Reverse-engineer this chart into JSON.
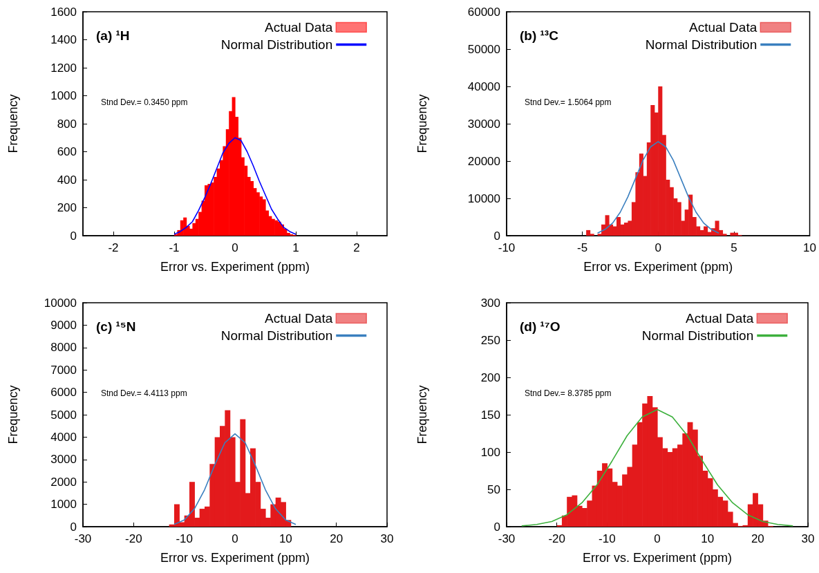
{
  "chart_data": [
    {
      "type": "histogram",
      "title": "(a) ¹H",
      "xlabel": "Error vs. Experiment (ppm)",
      "ylabel": "Frequency",
      "annotations": [
        "Stnd Dev.= 0.3450 ppm"
      ],
      "legend": "top right",
      "xlim": [
        -2.5,
        2.5
      ],
      "xticks": [
        -2,
        -1,
        0,
        1,
        2
      ],
      "ylim": [
        0,
        1600
      ],
      "yticks": [
        0,
        200,
        400,
        600,
        800,
        1000,
        1200,
        1400,
        1600
      ],
      "bins": [
        -1.0,
        -0.95,
        -0.9,
        -0.85,
        -0.8,
        -0.75,
        -0.7,
        -0.65,
        -0.6,
        -0.55,
        -0.5,
        -0.45,
        -0.4,
        -0.35,
        -0.3,
        -0.25,
        -0.2,
        -0.15,
        -0.1,
        -0.05,
        0,
        0.05,
        0.1,
        0.15,
        0.2,
        0.25,
        0.3,
        0.35,
        0.4,
        0.45,
        0.5,
        0.55,
        0.6,
        0.65,
        0.7,
        0.75,
        0.8,
        0.85,
        0.9,
        0.95,
        1.0
      ],
      "series": [
        {
          "name": "Actual Data",
          "type": "histogram",
          "color": "#ff0000",
          "values": [
            10,
            40,
            110,
            130,
            70,
            50,
            90,
            120,
            170,
            250,
            360,
            370,
            380,
            420,
            480,
            540,
            640,
            760,
            890,
            990,
            850,
            700,
            560,
            500,
            420,
            390,
            340,
            310,
            280,
            260,
            180,
            140,
            120,
            110,
            100,
            80,
            50,
            20,
            10,
            5
          ]
        },
        {
          "name": "Normal Distribution",
          "type": "line",
          "color": "#0000ff",
          "x": [
            -1.0,
            -0.9,
            -0.8,
            -0.7,
            -0.6,
            -0.5,
            -0.4,
            -0.3,
            -0.2,
            -0.1,
            0,
            0.1,
            0.2,
            0.3,
            0.4,
            0.5,
            0.6,
            0.7,
            0.8,
            0.9,
            1.0
          ],
          "values": [
            10,
            30,
            60,
            100,
            180,
            270,
            370,
            480,
            590,
            660,
            700,
            680,
            600,
            500,
            390,
            290,
            190,
            120,
            60,
            30,
            10
          ]
        }
      ]
    },
    {
      "type": "histogram",
      "title": "(b) ¹³C",
      "xlabel": "Error vs. Experiment (ppm)",
      "ylabel": "Frequency",
      "annotations": [
        "Stnd Dev.= 1.5064 ppm"
      ],
      "legend": "top right",
      "xlim": [
        -10,
        10
      ],
      "xticks": [
        -10,
        -5,
        0,
        5,
        10
      ],
      "ylim": [
        0,
        60000
      ],
      "yticks": [
        0,
        10000,
        20000,
        30000,
        40000,
        50000,
        60000
      ],
      "bins": [
        -5,
        -4.75,
        -4.5,
        -4.25,
        -4,
        -3.75,
        -3.5,
        -3.25,
        -3,
        -2.75,
        -2.5,
        -2.25,
        -2,
        -1.75,
        -1.5,
        -1.25,
        -1,
        -0.75,
        -0.5,
        -0.25,
        0,
        0.25,
        0.5,
        0.75,
        1,
        1.25,
        1.5,
        1.75,
        2,
        2.25,
        2.5,
        2.75,
        3,
        3.25,
        3.5,
        3.75,
        4,
        4.25,
        4.5,
        4.75,
        5,
        5.25,
        5.5
      ],
      "series": [
        {
          "name": "Actual Data",
          "type": "histogram",
          "color": "#e31a1c",
          "values": [
            0,
            1500,
            500,
            0,
            500,
            3000,
            5500,
            3000,
            2500,
            5000,
            3000,
            3500,
            4000,
            9000,
            17000,
            22000,
            16000,
            25000,
            35000,
            33000,
            40000,
            27000,
            15000,
            13000,
            10000,
            9000,
            4000,
            7000,
            11000,
            5000,
            2500,
            1500,
            2500,
            1000,
            2000,
            4000,
            1500,
            500,
            0,
            800,
            800,
            200
          ]
        },
        {
          "name": "Normal Distribution",
          "type": "line",
          "color": "#3a7fbf",
          "x": [
            -4,
            -3.5,
            -3,
            -2.5,
            -2,
            -1.5,
            -1,
            -0.5,
            0,
            0.5,
            1,
            1.5,
            2,
            2.5,
            3,
            3.5,
            4
          ],
          "values": [
            700,
            1700,
            3400,
            6300,
            10400,
            15300,
            20200,
            23800,
            25200,
            23800,
            20200,
            15300,
            10400,
            6300,
            3400,
            1700,
            700
          ]
        }
      ]
    },
    {
      "type": "histogram",
      "title": "(c) ¹⁵N",
      "xlabel": "Error vs. Experiment (ppm)",
      "ylabel": "Frequency",
      "annotations": [
        "Stnd Dev.= 4.4113 ppm"
      ],
      "legend": "top right",
      "xlim": [
        -30,
        30
      ],
      "xticks": [
        -30,
        -20,
        -10,
        0,
        10,
        20,
        30
      ],
      "ylim": [
        0,
        10000
      ],
      "yticks": [
        0,
        1000,
        2000,
        3000,
        4000,
        5000,
        6000,
        7000,
        8000,
        9000,
        10000
      ],
      "bins": [
        -13,
        -12,
        -11,
        -10,
        -9,
        -8,
        -7,
        -6,
        -5,
        -4,
        -3,
        -2,
        -1,
        0,
        1,
        2,
        3,
        4,
        5,
        6,
        7,
        8,
        9,
        10,
        11
      ],
      "series": [
        {
          "name": "Actual Data",
          "type": "histogram",
          "color": "#e31a1c",
          "values": [
            100,
            1000,
            200,
            500,
            2000,
            400,
            800,
            900,
            2800,
            4000,
            4500,
            5200,
            4000,
            2000,
            4800,
            1500,
            3500,
            2000,
            800,
            400,
            1000,
            1300,
            1100,
            300
          ]
        },
        {
          "name": "Normal Distribution",
          "type": "line",
          "color": "#3a7fbf",
          "x": [
            -12,
            -10,
            -8,
            -6,
            -4,
            -2,
            0,
            2,
            4,
            6,
            8,
            10,
            12
          ],
          "values": [
            100,
            300,
            800,
            1650,
            2750,
            3750,
            4150,
            3750,
            2750,
            1650,
            800,
            300,
            100
          ]
        }
      ]
    },
    {
      "type": "histogram",
      "title": "(d) ¹⁷O",
      "xlabel": "Error vs. Experiment (ppm)",
      "ylabel": "Frequency",
      "annotations": [
        "Stnd Dev.= 8.3785 ppm"
      ],
      "legend": "top right",
      "xlim": [
        -30,
        30
      ],
      "xticks": [
        -30,
        -20,
        -10,
        0,
        10,
        20,
        30
      ],
      "ylim": [
        0,
        300
      ],
      "yticks": [
        0,
        50,
        100,
        150,
        200,
        250,
        300
      ],
      "bins": [
        -20,
        -19,
        -18,
        -17,
        -16,
        -15,
        -14,
        -13,
        -12,
        -11,
        -10,
        -9,
        -8,
        -7,
        -6,
        -5,
        -4,
        -3,
        -2,
        -1,
        0,
        1,
        2,
        3,
        4,
        5,
        6,
        7,
        8,
        9,
        10,
        11,
        12,
        13,
        14,
        15,
        16,
        17,
        18,
        19,
        20,
        21,
        22,
        23
      ],
      "series": [
        {
          "name": "Actual Data",
          "type": "histogram",
          "color": "#e31a1c",
          "values": [
            2,
            15,
            40,
            42,
            28,
            25,
            35,
            55,
            75,
            85,
            78,
            60,
            55,
            70,
            80,
            110,
            140,
            165,
            175,
            160,
            120,
            105,
            100,
            105,
            110,
            125,
            140,
            130,
            95,
            75,
            65,
            50,
            40,
            35,
            20,
            5,
            1,
            2,
            30,
            45,
            30,
            8,
            1
          ]
        },
        {
          "name": "Normal Distribution",
          "type": "line",
          "color": "#3cb03c",
          "x": [
            -27,
            -24,
            -21,
            -18,
            -15,
            -12,
            -9,
            -6,
            -3,
            0,
            3,
            6,
            9,
            12,
            15,
            18,
            21,
            24,
            27
          ],
          "values": [
            1,
            3,
            7,
            16,
            32,
            56,
            88,
            122,
            147,
            157,
            147,
            122,
            88,
            56,
            32,
            16,
            7,
            3,
            1
          ]
        }
      ]
    }
  ]
}
